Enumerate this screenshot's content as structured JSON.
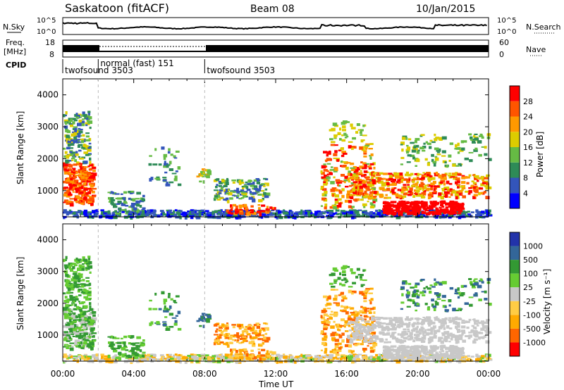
{
  "header": {
    "station": "Saskatoon (fitACF)",
    "beam": "Beam 08",
    "date": "10/Jan/2015"
  },
  "noise_panel": {
    "left_label": "N.Sky",
    "right_label": "N.Search",
    "ticks_left": [
      "10^5",
      "10^0"
    ],
    "ticks_right": [
      "10^5",
      "10^0"
    ]
  },
  "freq_panel": {
    "left_label_1": "Freq.",
    "left_label_2": "[MHz]",
    "right_label": "Nave",
    "ticks_left": [
      "18",
      "8"
    ],
    "ticks_right": [
      "60",
      "0"
    ]
  },
  "cpid": {
    "label": "CPID",
    "segments": [
      {
        "name": "twofsound 3503",
        "start_h": 0.0,
        "end_h": 2.0
      },
      {
        "name": "normal (fast) 151",
        "start_h": 2.0,
        "end_h": 8.0
      },
      {
        "name": "twofsound 3503",
        "start_h": 8.0,
        "end_h": 24.0
      }
    ]
  },
  "colors": {
    "power": [
      "#0000ff",
      "#3355bb",
      "#2e8b57",
      "#66bb44",
      "#ddcc00",
      "#ff9900",
      "#ff5500",
      "#ff0000"
    ],
    "velocity": [
      "#ff0000",
      "#ff6600",
      "#ffaa00",
      "#ffcc44",
      "#c8c8c8",
      "#c8c8c8",
      "#66cc33",
      "#339933",
      "#336699",
      "#2233aa"
    ]
  },
  "chart_data": [
    {
      "type": "heatmap",
      "name": "power",
      "ylabel": "Slant Range [km]",
      "ylim": [
        180,
        4500
      ],
      "xlim": [
        0,
        24
      ],
      "y_ticks": [
        1000,
        2000,
        3000,
        4000
      ],
      "colorbar_label": "Power [dB]",
      "colorbar_ticks": [
        "4",
        "8",
        "12",
        "16",
        "20",
        "24",
        "28"
      ],
      "colorbar_range": [
        0,
        32
      ]
    },
    {
      "type": "heatmap",
      "name": "velocity",
      "ylabel": "Slant Range [km]",
      "xlabel": "Time UT",
      "ylim": [
        180,
        4500
      ],
      "xlim": [
        0,
        24
      ],
      "y_ticks": [
        1000,
        2000,
        3000,
        4000
      ],
      "x_ticks": [
        "00:00",
        "04:00",
        "08:00",
        "12:00",
        "16:00",
        "20:00",
        "00:00"
      ],
      "colorbar_label": "Velocity [m s⁻¹]",
      "colorbar_ticks": [
        "1000",
        "500",
        "100",
        "25",
        "-25",
        "-100",
        "-500",
        "-1000"
      ]
    }
  ]
}
